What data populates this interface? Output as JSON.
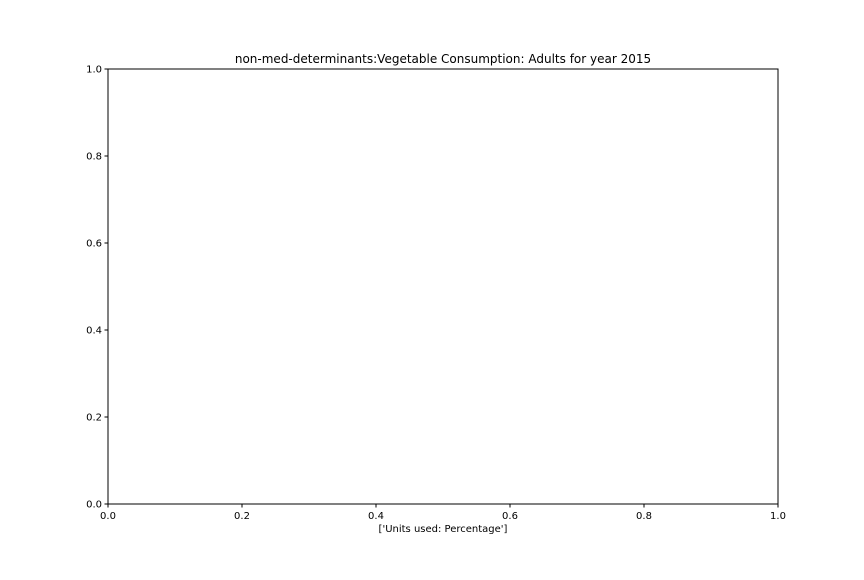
{
  "chart_data": {
    "type": "line",
    "title": "non-med-determinants:Vegetable Consumption: Adults for year 2015",
    "xlabel": "['Units used: Percentage']",
    "ylabel": "",
    "xlim": [
      0.0,
      1.0
    ],
    "ylim": [
      0.0,
      1.0
    ],
    "xticks": [
      "0.0",
      "0.2",
      "0.4",
      "0.6",
      "0.8",
      "1.0"
    ],
    "yticks": [
      "0.0",
      "0.2",
      "0.4",
      "0.6",
      "0.8",
      "1.0"
    ],
    "series": [],
    "grid": false
  }
}
